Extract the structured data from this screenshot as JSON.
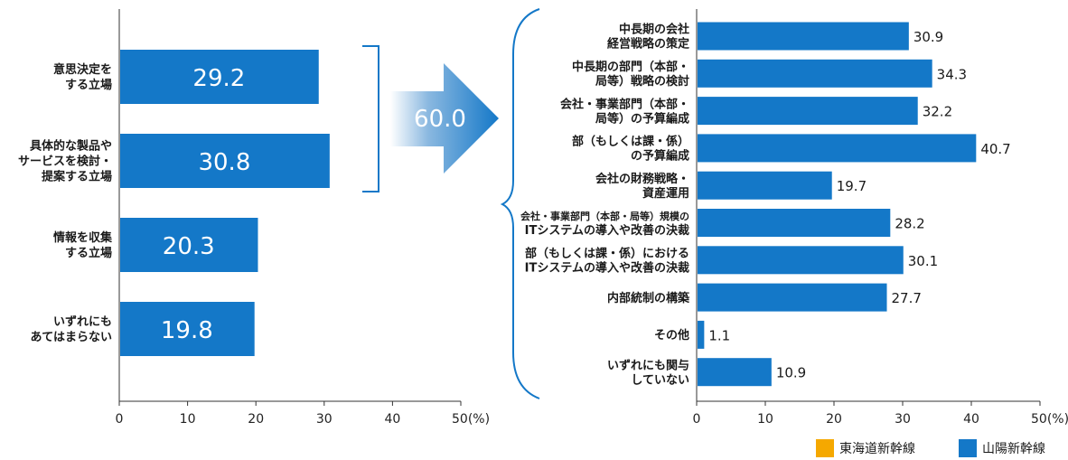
{
  "colors": {
    "bar": "#1478c8",
    "axis": "#333333",
    "bracket": "#1478c8",
    "legend_orange": "#f5a800"
  },
  "summary_arrow": {
    "value": "60.0"
  },
  "chart_data": [
    {
      "type": "bar",
      "orientation": "horizontal",
      "categories": [
        "意思決定を\nする立場",
        "具体的な製品や\nサービスを検討・\n提案する立場",
        "情報を収集\nする立場",
        "いずれにも\nあてはまらない"
      ],
      "values": [
        29.2,
        30.8,
        20.3,
        19.8
      ],
      "value_labels": [
        "29.2",
        "30.8",
        "20.3",
        "19.8"
      ],
      "xlim": [
        0,
        50
      ],
      "xticks": [
        "0",
        "10",
        "20",
        "30",
        "40",
        "50(%)"
      ],
      "value_label_position": "inside"
    },
    {
      "type": "bar",
      "orientation": "horizontal",
      "categories": [
        "中長期の会社\n経営戦略の策定",
        "中長期の部門（本部・\n局等）戦略の検討",
        "会社・事業部門（本部・\n局等）の予算編成",
        "部（もしくは課・係）\nの予算編成",
        "会社の財務戦略・\n資産運用",
        "会社・事業部門（本部・局等）規模の\nITシステムの導入や改善の決裁",
        "部（もしくは課・係）における\nITシステムの導入や改善の決裁",
        "内部統制の構築",
        "その他",
        "いずれにも関与\nしていない"
      ],
      "values": [
        30.9,
        34.3,
        32.2,
        40.7,
        19.7,
        28.2,
        30.1,
        27.7,
        1.1,
        10.9
      ],
      "value_labels": [
        "30.9",
        "34.3",
        "32.2",
        "40.7",
        "19.7",
        "28.2",
        "30.1",
        "27.7",
        "1.1",
        "10.9"
      ],
      "xlim": [
        0,
        50
      ],
      "xticks": [
        "0",
        "10",
        "20",
        "30",
        "40",
        "50(%)"
      ],
      "value_label_position": "outside"
    }
  ],
  "legend": [
    {
      "label": "東海道新幹線",
      "color": "#f5a800"
    },
    {
      "label": "山陽新幹線",
      "color": "#1478c8"
    }
  ]
}
